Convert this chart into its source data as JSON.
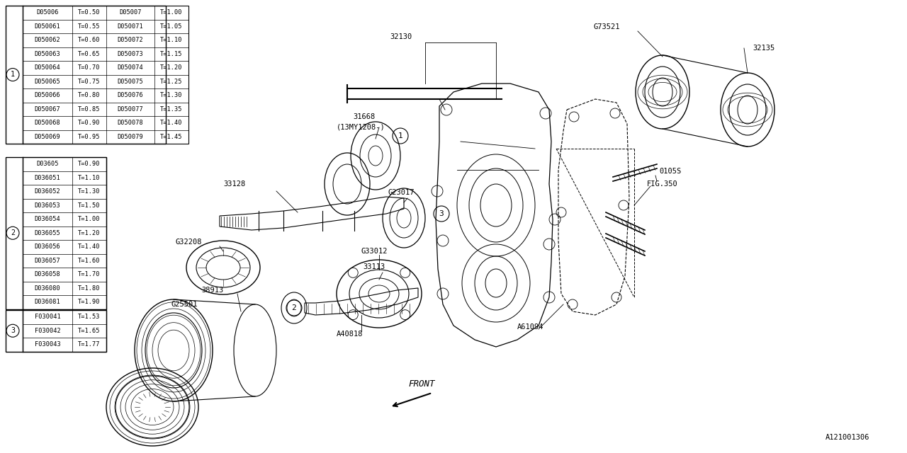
{
  "bg_color": "#ffffff",
  "line_color": "#000000",
  "table1_rows": [
    [
      "D05006",
      "T=0.50",
      "D05007",
      "T=1.00"
    ],
    [
      "D050061",
      "T=0.55",
      "D050071",
      "T=1.05"
    ],
    [
      "D050062",
      "T=0.60",
      "D050072",
      "T=1.10"
    ],
    [
      "D050063",
      "T=0.65",
      "D050073",
      "T=1.15"
    ],
    [
      "D050064",
      "T=0.70",
      "D050074",
      "T=1.20"
    ],
    [
      "D050065",
      "T=0.75",
      "D050075",
      "T=1.25"
    ],
    [
      "D050066",
      "T=0.80",
      "D050076",
      "T=1.30"
    ],
    [
      "D050067",
      "T=0.85",
      "D050077",
      "T=1.35"
    ],
    [
      "D050068",
      "T=0.90",
      "D050078",
      "T=1.40"
    ],
    [
      "D050069",
      "T=0.95",
      "D050079",
      "T=1.45"
    ]
  ],
  "table2_rows": [
    [
      "D03605",
      "T=0.90"
    ],
    [
      "D036051",
      "T=1.10"
    ],
    [
      "D036052",
      "T=1.30"
    ],
    [
      "D036053",
      "T=1.50"
    ],
    [
      "D036054",
      "T=1.00"
    ],
    [
      "D036055",
      "T=1.20"
    ],
    [
      "D036056",
      "T=1.40"
    ],
    [
      "D036057",
      "T=1.60"
    ],
    [
      "D036058",
      "T=1.70"
    ],
    [
      "D036080",
      "T=1.80"
    ],
    [
      "D036081",
      "T=1.90"
    ]
  ],
  "table3_rows": [
    [
      "F030041",
      "T=1.53"
    ],
    [
      "F030042",
      "T=1.65"
    ],
    [
      "F030043",
      "T=1.77"
    ]
  ],
  "font_size_table": 6.2,
  "font_size_label": 7.5,
  "font_family": "monospace"
}
